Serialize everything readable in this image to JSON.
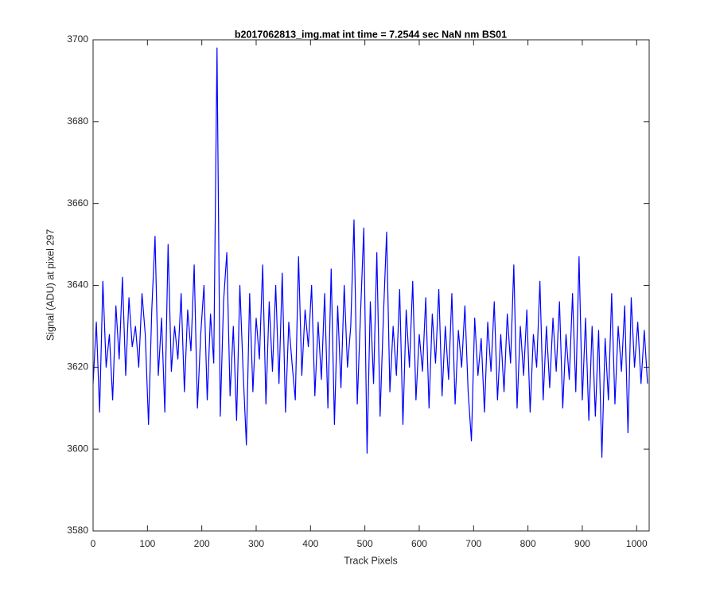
{
  "chart_data": {
    "type": "line",
    "title": "b2017062813_img.mat int time = 7.2544 sec  NaN nm BS01",
    "x_label": "Track Pixels",
    "y_label": "Signal (ADU) at pixel 297",
    "x": [
      0,
      6,
      12,
      18,
      24,
      30,
      36,
      42,
      48,
      54,
      60,
      66,
      72,
      78,
      84,
      90,
      96,
      102,
      108,
      114,
      120,
      126,
      132,
      138,
      144,
      150,
      156,
      162,
      168,
      174,
      180,
      186,
      192,
      198,
      204,
      210,
      216,
      222,
      228,
      234,
      240,
      246,
      252,
      258,
      264,
      270,
      276,
      282,
      288,
      294,
      300,
      306,
      312,
      318,
      324,
      330,
      336,
      342,
      348,
      354,
      360,
      366,
      372,
      378,
      384,
      390,
      396,
      402,
      408,
      414,
      420,
      426,
      432,
      438,
      444,
      450,
      456,
      462,
      468,
      474,
      480,
      486,
      492,
      498,
      504,
      510,
      516,
      522,
      528,
      534,
      540,
      546,
      552,
      558,
      564,
      570,
      576,
      582,
      588,
      594,
      600,
      606,
      612,
      618,
      624,
      630,
      636,
      642,
      648,
      654,
      660,
      666,
      672,
      678,
      684,
      690,
      696,
      702,
      708,
      714,
      720,
      726,
      732,
      738,
      744,
      750,
      756,
      762,
      768,
      774,
      780,
      786,
      792,
      798,
      804,
      810,
      816,
      822,
      828,
      834,
      840,
      846,
      852,
      858,
      864,
      870,
      876,
      882,
      888,
      894,
      900,
      906,
      912,
      918,
      924,
      930,
      936,
      942,
      948,
      954,
      960,
      966,
      972,
      978,
      984,
      990,
      996,
      1002,
      1008,
      1014,
      1020
    ],
    "series": [
      {
        "color": "#0000ff",
        "values": [
          3616,
          3631,
          3609,
          3641,
          3620,
          3628,
          3612,
          3635,
          3622,
          3642,
          3618,
          3637,
          3625,
          3630,
          3620,
          3638,
          3628,
          3606,
          3634,
          3652,
          3618,
          3632,
          3609,
          3650,
          3619,
          3630,
          3622,
          3638,
          3614,
          3634,
          3624,
          3645,
          3610,
          3628,
          3640,
          3612,
          3633,
          3621,
          3698,
          3608,
          3636,
          3648,
          3613,
          3630,
          3607,
          3640,
          3619,
          3601,
          3638,
          3614,
          3632,
          3622,
          3645,
          3611,
          3636,
          3619,
          3640,
          3616,
          3643,
          3609,
          3631,
          3621,
          3612,
          3647,
          3618,
          3634,
          3625,
          3640,
          3613,
          3631,
          3617,
          3638,
          3610,
          3644,
          3606,
          3635,
          3615,
          3640,
          3620,
          3630,
          3656,
          3611,
          3633,
          3654,
          3599,
          3636,
          3616,
          3648,
          3608,
          3632,
          3653,
          3614,
          3630,
          3618,
          3639,
          3606,
          3634,
          3620,
          3641,
          3612,
          3628,
          3619,
          3637,
          3610,
          3633,
          3621,
          3639,
          3613,
          3630,
          3617,
          3638,
          3611,
          3629,
          3620,
          3635,
          3614,
          3602,
          3632,
          3618,
          3627,
          3609,
          3631,
          3619,
          3636,
          3612,
          3628,
          3614,
          3633,
          3621,
          3645,
          3610,
          3630,
          3618,
          3634,
          3609,
          3628,
          3620,
          3641,
          3612,
          3630,
          3615,
          3632,
          3619,
          3636,
          3610,
          3628,
          3617,
          3638,
          3614,
          3647,
          3612,
          3632,
          3607,
          3630,
          3608,
          3629,
          3598,
          3627,
          3612,
          3638,
          3611,
          3630,
          3619,
          3635,
          3604,
          3637,
          3620,
          3631,
          3616,
          3629,
          3616
        ]
      }
    ],
    "xlim": [
      0,
      1023
    ],
    "ylim": [
      3580,
      3700
    ],
    "xticks": [
      0,
      100,
      200,
      300,
      400,
      500,
      600,
      700,
      800,
      900,
      1000
    ],
    "yticks": [
      3580,
      3600,
      3620,
      3640,
      3660,
      3680,
      3700
    ],
    "grid": false
  }
}
